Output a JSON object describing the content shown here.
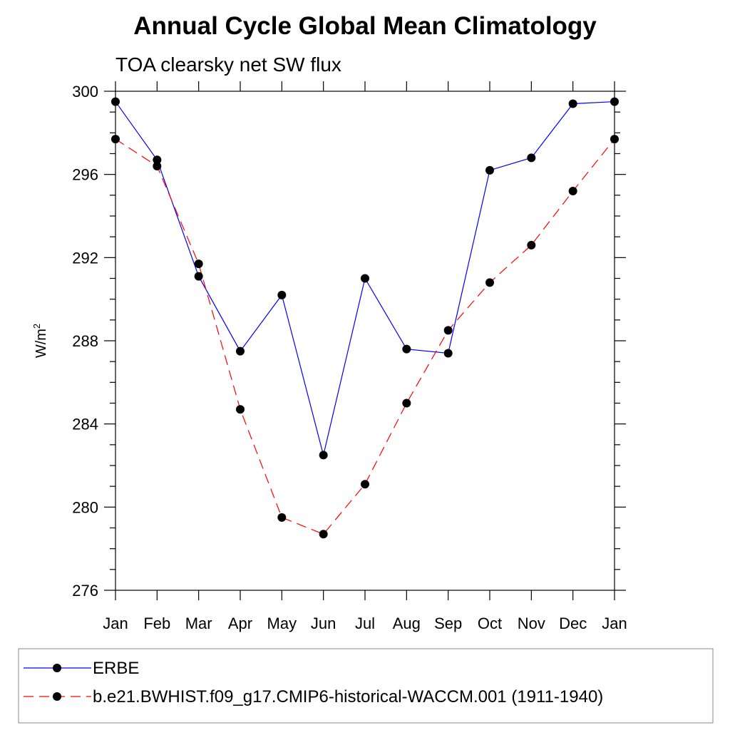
{
  "chart_data": {
    "type": "line",
    "title": "Annual Cycle Global Mean Climatology",
    "subtitle": "TOA clearsky net SW flux",
    "ylabel_base": "W/m",
    "ylabel_sup": "2",
    "xlabel": "",
    "categories": [
      "Jan",
      "Feb",
      "Mar",
      "Apr",
      "May",
      "Jun",
      "Jul",
      "Aug",
      "Sep",
      "Oct",
      "Nov",
      "Dec",
      "Jan"
    ],
    "ylim": [
      276,
      300
    ],
    "yticks": [
      276,
      280,
      284,
      288,
      292,
      296,
      300
    ],
    "yticklabels": [
      "276",
      "280",
      "284",
      "288",
      "292",
      "296",
      "300"
    ],
    "grid": false,
    "legend_placement": "bottom",
    "series": [
      {
        "name": "ERBE",
        "color": "#0000ff",
        "dash": "solid",
        "values": [
          299.5,
          296.7,
          291.1,
          287.5,
          290.2,
          282.5,
          291.0,
          287.6,
          287.4,
          296.2,
          296.8,
          299.4,
          299.5
        ]
      },
      {
        "name": "b.e21.BWHIST.f09_g17.CMIP6-historical-WACCM.001 (1911-1940)",
        "color": "#ff0000",
        "dash": "dashed",
        "values": [
          297.7,
          296.4,
          291.7,
          284.7,
          279.5,
          278.7,
          281.1,
          285.0,
          288.5,
          290.8,
          292.6,
          295.2,
          297.7
        ]
      }
    ]
  }
}
